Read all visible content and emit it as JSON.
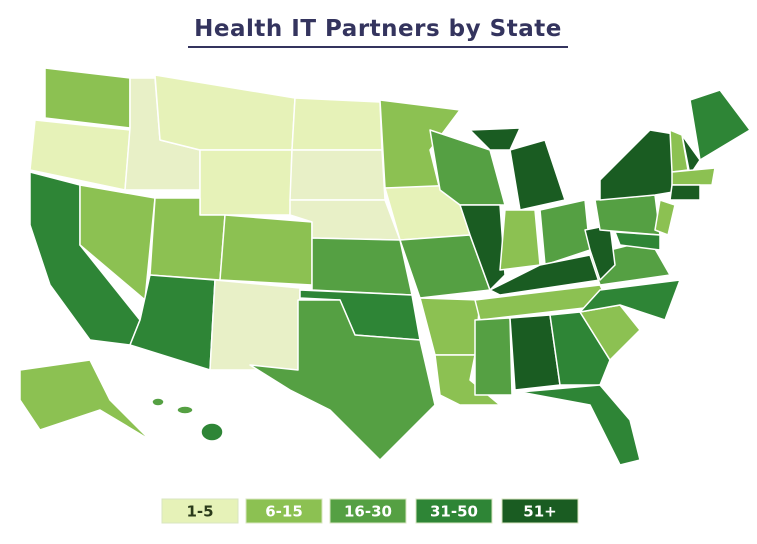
{
  "title": "Health IT Partners by State",
  "legend": {
    "items": [
      {
        "label": "1-5",
        "color": "#e6f2b8"
      },
      {
        "label": "6-15",
        "color": "#8cc152"
      },
      {
        "label": "16-30",
        "color": "#55a043"
      },
      {
        "label": "31-50",
        "color": "#2e8536"
      },
      {
        "label": "51+",
        "color": "#1a5c22"
      }
    ]
  }
}
